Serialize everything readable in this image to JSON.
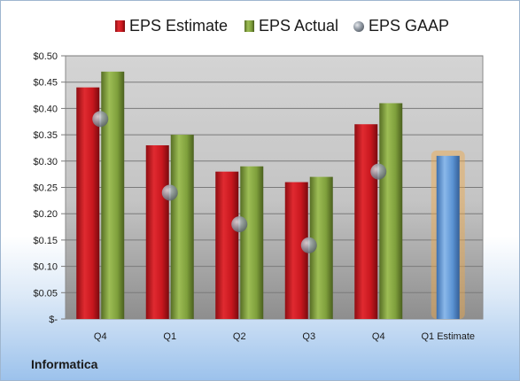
{
  "company": "Informatica",
  "chart_data": {
    "type": "bar",
    "categories": [
      "Q4",
      "Q1",
      "Q2",
      "Q3",
      "Q4",
      "Q1 Estimate"
    ],
    "series": [
      {
        "name": "EPS Estimate",
        "values": [
          0.44,
          0.33,
          0.28,
          0.26,
          0.37,
          null
        ],
        "color": "#c8171e"
      },
      {
        "name": "EPS Actual",
        "values": [
          0.47,
          0.35,
          0.29,
          0.27,
          0.41,
          null
        ],
        "color": "#7fa03c"
      },
      {
        "name": "EPS GAAP",
        "type": "scatter",
        "values": [
          0.38,
          0.24,
          0.18,
          0.14,
          0.28,
          null
        ],
        "color": "#9aa2ac"
      }
    ],
    "forecast": {
      "category": "Q1 Estimate",
      "value": 0.31,
      "color": "#5b93d3",
      "glow": "#f0a848"
    },
    "y_ticks": [
      "$-",
      "$0.05",
      "$0.10",
      "$0.15",
      "$0.20",
      "$0.25",
      "$0.30",
      "$0.35",
      "$0.40",
      "$0.45",
      "$0.50"
    ],
    "ylim": [
      0,
      0.5
    ],
    "grid": true,
    "legend": "top"
  }
}
